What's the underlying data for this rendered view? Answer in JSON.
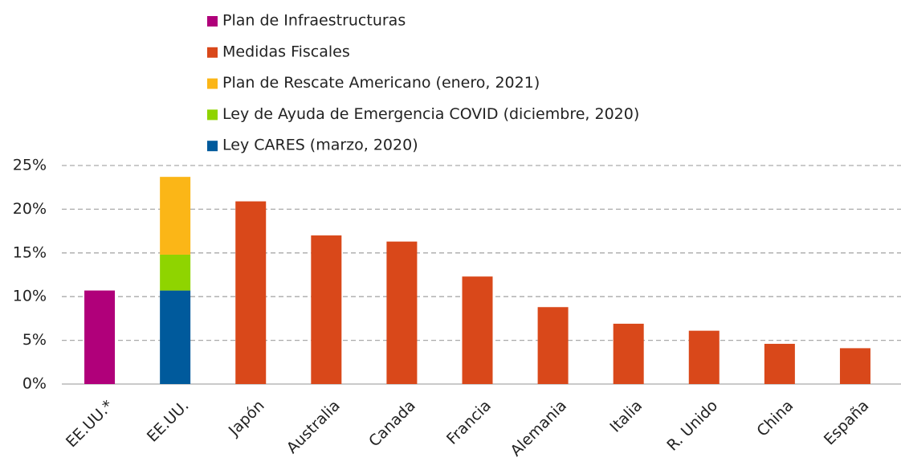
{
  "chart_data": {
    "type": "stacked_bar",
    "categories": [
      "EE.UU.*",
      "EE.UU.",
      "Japón",
      "Australia",
      "Canada",
      "Francia",
      "Alemania",
      "Italia",
      "R. Unido",
      "China",
      "España"
    ],
    "series": [
      {
        "name": "Plan de Infraestructuras",
        "color": "#b0007a",
        "values": [
          10.7,
          null,
          null,
          null,
          null,
          null,
          null,
          null,
          null,
          null,
          null
        ]
      },
      {
        "name": "Medidas Fiscales",
        "color": "#d9481a",
        "values": [
          null,
          null,
          20.9,
          17.0,
          16.3,
          12.3,
          8.8,
          6.9,
          6.1,
          4.6,
          4.1
        ]
      },
      {
        "name": "Plan de Rescate Americano (enero, 2021)",
        "color": "#fbb617",
        "values": [
          null,
          8.9,
          null,
          null,
          null,
          null,
          null,
          null,
          null,
          null,
          null
        ]
      },
      {
        "name": "Ley de Ayuda de Emergencia COVID (diciembre, 2020)",
        "color": "#8fd400",
        "values": [
          null,
          4.1,
          null,
          null,
          null,
          null,
          null,
          null,
          null,
          null,
          null
        ]
      },
      {
        "name": "Ley CARES (marzo, 2020)",
        "color": "#005a9c",
        "values": [
          null,
          10.7,
          null,
          null,
          null,
          null,
          null,
          null,
          null,
          null,
          null
        ]
      }
    ],
    "ylim": [
      0,
      25
    ],
    "yticks": [
      {
        "value": 0,
        "label": "0%"
      },
      {
        "value": 5,
        "label": "5%"
      },
      {
        "value": 10,
        "label": "10%"
      },
      {
        "value": 15,
        "label": "15%"
      },
      {
        "value": 20,
        "label": "20%"
      },
      {
        "value": 25,
        "label": "25%"
      }
    ],
    "grid": true,
    "legend": "top"
  }
}
